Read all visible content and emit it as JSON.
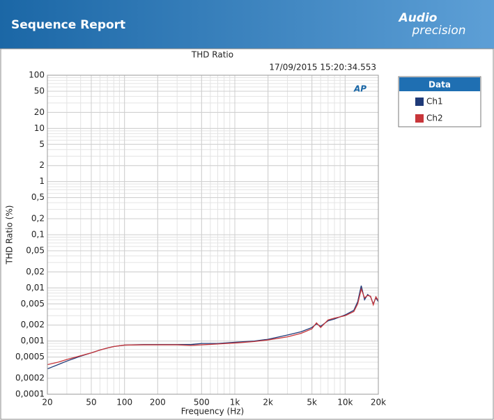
{
  "header": {
    "title": "Sequence Report",
    "logo_top": "Audio",
    "logo_bottom": "precision"
  },
  "chart_data": {
    "type": "line",
    "title": "THD Ratio",
    "subtitle": "17/09/2015 15:20:34.553",
    "xlabel": "Frequency (Hz)",
    "ylabel": "THD Ratio (%)",
    "legend_title": "Data",
    "legend": "outside-right",
    "xscale": "log",
    "yscale": "log",
    "grid": true,
    "xlim": [
      20,
      20000
    ],
    "ylim": [
      0.0001,
      100
    ],
    "xticks": [
      20,
      50,
      100,
      200,
      500,
      {
        "value": 1000,
        "label": "1k"
      },
      {
        "value": 2000,
        "label": "2k"
      },
      {
        "value": 5000,
        "label": "5k"
      },
      {
        "value": 10000,
        "label": "10k"
      },
      {
        "value": 20000,
        "label": "20k"
      }
    ],
    "yticks": [
      100,
      50,
      20,
      10,
      5,
      2,
      1,
      {
        "value": 0.5,
        "label": "0,5"
      },
      {
        "value": 0.2,
        "label": "0,2"
      },
      {
        "value": 0.1,
        "label": "0,1"
      },
      {
        "value": 0.05,
        "label": "0,05"
      },
      {
        "value": 0.02,
        "label": "0,02"
      },
      {
        "value": 0.01,
        "label": "0,01"
      },
      {
        "value": 0.005,
        "label": "0,005"
      },
      {
        "value": 0.002,
        "label": "0,002"
      },
      {
        "value": 0.001,
        "label": "0,001"
      },
      {
        "value": 0.0005,
        "label": "0,0005"
      },
      {
        "value": 0.0002,
        "label": "0,0002"
      },
      {
        "value": 0.0001,
        "label": "0,0001"
      }
    ],
    "x": [
      20,
      25,
      30,
      40,
      50,
      60,
      70,
      80,
      100,
      150,
      200,
      300,
      400,
      500,
      700,
      1000,
      1500,
      2000,
      3000,
      4000,
      5000,
      5500,
      6000,
      7000,
      8000,
      10000,
      12000,
      13000,
      14000,
      15000,
      16000,
      17000,
      18000,
      19000,
      20000
    ],
    "series": [
      {
        "name": "Ch1",
        "color": "#1f3a78",
        "values": [
          0.0003,
          0.00036,
          0.00042,
          0.00052,
          0.0006,
          0.00068,
          0.00074,
          0.00079,
          0.00084,
          0.00086,
          0.00086,
          0.00086,
          0.00086,
          0.0009,
          0.0009,
          0.00095,
          0.001,
          0.00108,
          0.0013,
          0.0015,
          0.0018,
          0.0021,
          0.0019,
          0.0024,
          0.0026,
          0.0031,
          0.0038,
          0.0055,
          0.011,
          0.006,
          0.0075,
          0.0068,
          0.005,
          0.0065,
          0.0055
        ]
      },
      {
        "name": "Ch2",
        "color": "#c8363a",
        "values": [
          0.00036,
          0.0004,
          0.00045,
          0.00053,
          0.0006,
          0.00068,
          0.00074,
          0.00079,
          0.00084,
          0.00085,
          0.00085,
          0.00085,
          0.00083,
          0.00085,
          0.00088,
          0.00092,
          0.00098,
          0.00105,
          0.0012,
          0.0014,
          0.0017,
          0.0022,
          0.0018,
          0.0025,
          0.0027,
          0.003,
          0.0036,
          0.005,
          0.0095,
          0.0065,
          0.0072,
          0.007,
          0.0048,
          0.0068,
          0.0058
        ]
      }
    ]
  }
}
